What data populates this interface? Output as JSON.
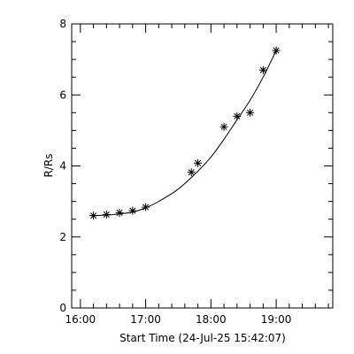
{
  "chart_data": {
    "type": "scatter",
    "title": "",
    "xlabel": "Start Time (24-Jul-25 15:42:07)",
    "ylabel": "R/Rs",
    "xlim": [
      "15:52",
      "19:52"
    ],
    "ylim": [
      0,
      8
    ],
    "xticks": [
      "16:00",
      "17:00",
      "18:00",
      "19:00"
    ],
    "yticks": [
      0,
      2,
      4,
      6,
      8
    ],
    "grid": false,
    "legend": "none",
    "marker": "asterisk",
    "color": "#000000",
    "series": [
      {
        "points": [
          {
            "x": "16:12",
            "y": 2.6
          },
          {
            "x": "16:24",
            "y": 2.63
          },
          {
            "x": "16:36",
            "y": 2.68
          },
          {
            "x": "16:48",
            "y": 2.74
          },
          {
            "x": "17:00",
            "y": 2.84
          },
          {
            "x": "17:42",
            "y": 3.82
          },
          {
            "x": "17:48",
            "y": 4.08
          },
          {
            "x": "18:12",
            "y": 5.1
          },
          {
            "x": "18:24",
            "y": 5.4
          },
          {
            "x": "18:36",
            "y": 5.5
          },
          {
            "x": "18:48",
            "y": 6.7
          },
          {
            "x": "19:00",
            "y": 7.25
          }
        ]
      }
    ],
    "fit_curve": [
      {
        "x": "16:12",
        "y": 2.6
      },
      {
        "x": "16:30",
        "y": 2.63
      },
      {
        "x": "16:48",
        "y": 2.7
      },
      {
        "x": "17:00",
        "y": 2.82
      },
      {
        "x": "17:12",
        "y": 3.0
      },
      {
        "x": "17:30",
        "y": 3.35
      },
      {
        "x": "17:48",
        "y": 3.85
      },
      {
        "x": "18:00",
        "y": 4.25
      },
      {
        "x": "18:12",
        "y": 4.75
      },
      {
        "x": "18:24",
        "y": 5.3
      },
      {
        "x": "18:36",
        "y": 5.85
      },
      {
        "x": "18:48",
        "y": 6.5
      },
      {
        "x": "19:00",
        "y": 7.25
      }
    ]
  }
}
